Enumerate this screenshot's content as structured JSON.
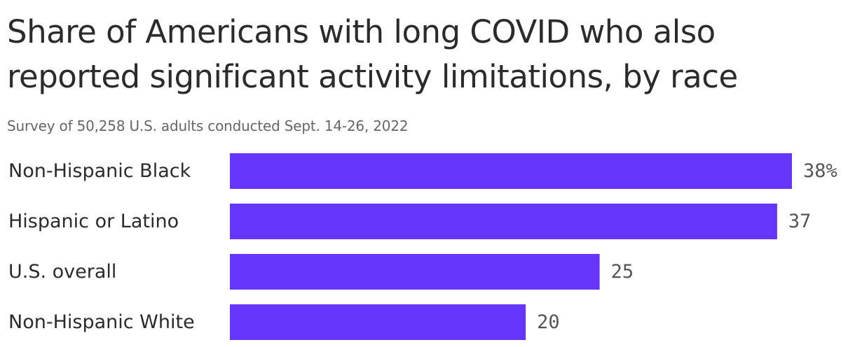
{
  "chart_data": {
    "type": "bar",
    "orientation": "horizontal",
    "title": "Share of Americans with long COVID who also reported significant activity limitations, by race",
    "subtitle": "Survey of 50,258 U.S. adults conducted Sept. 14-26, 2022",
    "categories": [
      "Non-Hispanic Black",
      "Hispanic or Latino",
      "U.S. overall",
      "Non-Hispanic White"
    ],
    "values": [
      38,
      37,
      25,
      20
    ],
    "value_labels": [
      "38%",
      "37",
      "25",
      "20"
    ],
    "bar_color": "#6535fb",
    "xlim": [
      0,
      38
    ],
    "grid": false,
    "legend": "none"
  }
}
